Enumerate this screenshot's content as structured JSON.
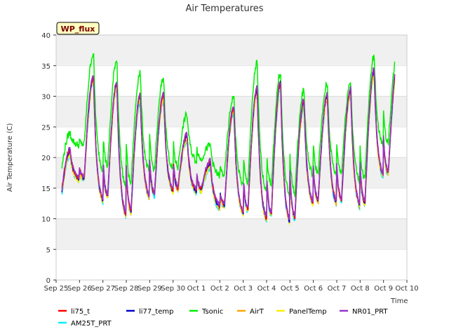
{
  "chart_data": {
    "type": "line",
    "title": "Air Temperatures",
    "xlabel": "Time",
    "ylabel": "Air Temperature (C)",
    "badge": "WP_flux",
    "ylim": [
      0,
      40
    ],
    "xlim_days": [
      "Sep 25",
      "Oct 10"
    ],
    "yticks": [
      0,
      5,
      10,
      15,
      20,
      25,
      30,
      35,
      40
    ],
    "xtick_labels": [
      "Sep 25",
      "Sep 26",
      "Sep 27",
      "Sep 28",
      "Sep 29",
      "Sep 30",
      "Oct 1",
      "Oct 2",
      "Oct 3",
      "Oct 4",
      "Oct 5",
      "Oct 6",
      "Oct 7",
      "Oct 8",
      "Oct 9",
      "Oct 10"
    ],
    "grid": "horizontal bands",
    "legend_position": "bottom",
    "day_dates": [
      "Sep 25",
      "Sep 26",
      "Sep 27",
      "Sep 28",
      "Sep 29",
      "Sep 30",
      "Oct 1",
      "Oct 2",
      "Oct 3",
      "Oct 4",
      "Oct 5",
      "Oct 6",
      "Oct 7",
      "Oct 8",
      "Oct 9"
    ],
    "daily_min": [
      13,
      16.5,
      13,
      10.5,
      13.5,
      14.5,
      14.5,
      12,
      11,
      10,
      9.5,
      12.5,
      12.5,
      12,
      17
    ],
    "daily_max": [
      21,
      33,
      32,
      30,
      30,
      23.5,
      19,
      28,
      31,
      32,
      29,
      30,
      31,
      34,
      35
    ],
    "tsonic_min": [
      17,
      22,
      18,
      15,
      17.5,
      18,
      19.5,
      17,
      15.5,
      14.5,
      13.5,
      17,
      17,
      16,
      22
    ],
    "tsonic_max": [
      24,
      37,
      36,
      34,
      33,
      27,
      22,
      30,
      35.5,
      34,
      31,
      32,
      32.5,
      36.5,
      37
    ],
    "series": [
      {
        "name": "li75_t",
        "color": "#ff0000"
      },
      {
        "name": "li77_temp",
        "color": "#0000cc"
      },
      {
        "name": "Tsonic",
        "color": "#00ee00"
      },
      {
        "name": "AirT",
        "color": "#ffa500"
      },
      {
        "name": "PanelTemp",
        "color": "#ffee00"
      },
      {
        "name": "NR01_PRT",
        "color": "#9933cc"
      },
      {
        "name": "AM25T_PRT",
        "color": "#00eeff"
      }
    ]
  }
}
